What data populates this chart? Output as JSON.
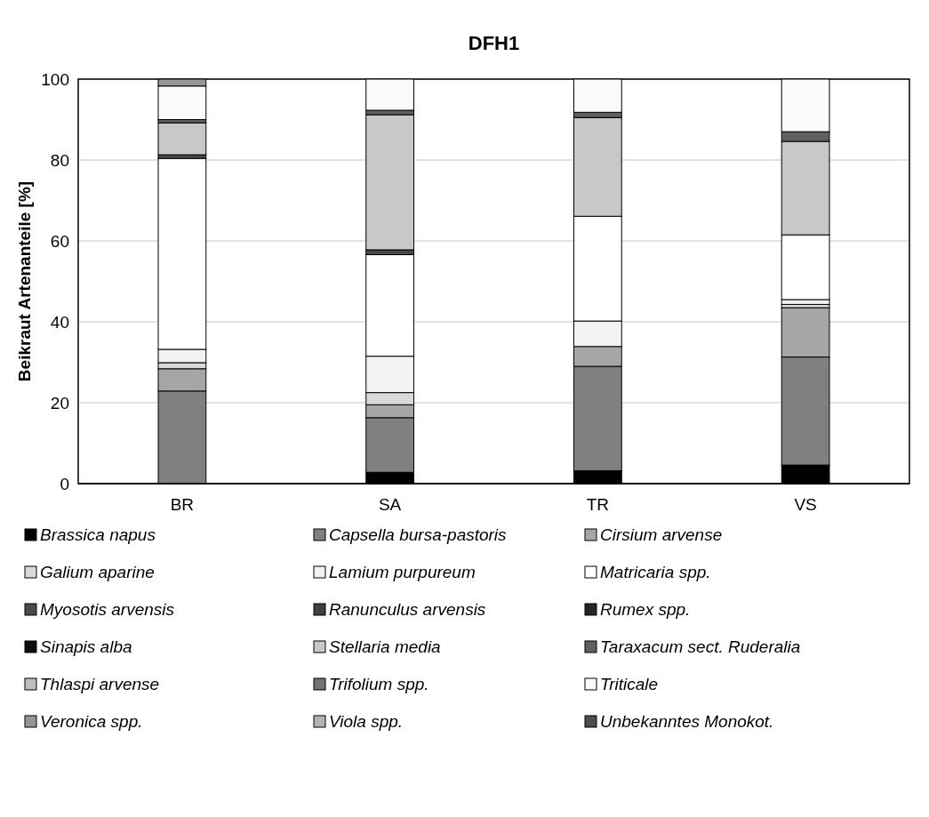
{
  "chart_data": {
    "type": "bar",
    "title": "DFH1",
    "ylabel": "Beikraut Artenanteile [%]",
    "stacked": true,
    "categories": [
      "BR",
      "SA",
      "TR",
      "VS"
    ],
    "ylim": [
      0,
      100
    ],
    "yticks": [
      0,
      20,
      40,
      60,
      80,
      100
    ],
    "grid": "y",
    "legend": "bottom",
    "series": [
      {
        "name": "Brassica napus",
        "color": "#000000",
        "values": [
          0,
          2.8,
          3.2,
          4.6
        ]
      },
      {
        "name": "Capsella bursa-pastoris",
        "color": "#808080",
        "values": [
          22.9,
          13.5,
          25.8,
          26.7
        ]
      },
      {
        "name": "Cirsium arvense",
        "color": "#a6a6a6",
        "values": [
          5.5,
          3.2,
          4.9,
          12.2
        ]
      },
      {
        "name": "Galium aparine",
        "color": "#d9d9d9",
        "values": [
          1.5,
          3.0,
          0,
          0.8
        ]
      },
      {
        "name": "Lamium purpureum",
        "color": "#f2f2f2",
        "values": [
          3.3,
          9.0,
          6.3,
          1.2
        ]
      },
      {
        "name": "Matricaria spp.",
        "color": "#ffffff",
        "values": [
          47.2,
          25.1,
          25.9,
          16.0
        ]
      },
      {
        "name": "Myosotis arvensis",
        "color": "#4a4a4a",
        "values": [
          0.9,
          1.2,
          0,
          0
        ]
      },
      {
        "name": "Ranunculus arvensis",
        "color": "#404040",
        "values": [
          0,
          0,
          0,
          0
        ]
      },
      {
        "name": "Rumex spp.",
        "color": "#262626",
        "values": [
          0,
          0,
          0,
          0
        ]
      },
      {
        "name": "Sinapis alba",
        "color": "#0d0d0d",
        "values": [
          0,
          0,
          0,
          0
        ]
      },
      {
        "name": "Stellaria media",
        "color": "#c8c8c8",
        "values": [
          7.9,
          33.4,
          24.4,
          23.1
        ]
      },
      {
        "name": "Taraxacum sect. Ruderalia",
        "color": "#606060",
        "values": [
          0.8,
          1.1,
          1.3,
          2.4
        ]
      },
      {
        "name": "Thlaspi arvense",
        "color": "#bfbfbf",
        "values": [
          0,
          0,
          0,
          0
        ]
      },
      {
        "name": "Trifolium spp.",
        "color": "#737373",
        "values": [
          0,
          0,
          0,
          0
        ]
      },
      {
        "name": "Triticale",
        "color": "#fafafa",
        "values": [
          8.3,
          7.7,
          8.2,
          13.0
        ]
      },
      {
        "name": "Veronica spp.",
        "color": "#969696",
        "values": [
          1.7,
          0,
          0,
          0
        ]
      },
      {
        "name": "Viola spp.",
        "color": "#b3b3b3",
        "values": [
          0,
          0,
          0,
          0
        ]
      },
      {
        "name": "Unbekanntes Monokot.",
        "color": "#4d4d4d",
        "values": [
          0,
          0,
          0,
          0
        ]
      }
    ]
  }
}
